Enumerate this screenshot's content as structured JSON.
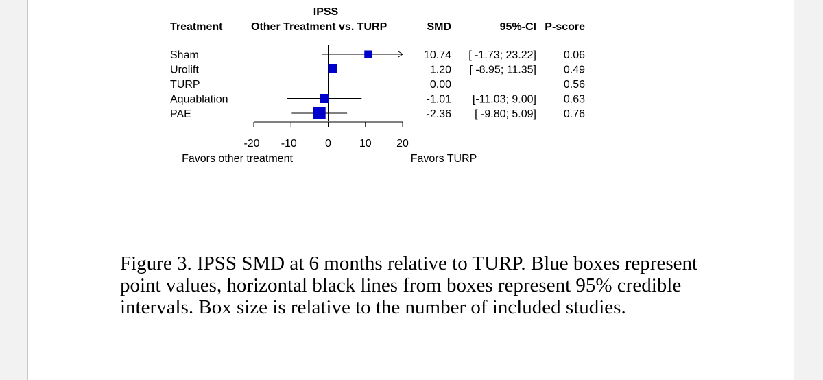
{
  "chart_data": {
    "type": "forest",
    "title": "IPSS",
    "headers": {
      "treatment": "Treatment",
      "comparison": "Other Treatment vs. TURP",
      "smd": "SMD",
      "ci": "95%-CI",
      "pscore": "P-score"
    },
    "rows": [
      {
        "name": "Sham",
        "smd": 10.74,
        "lo": -1.73,
        "hi": 23.22,
        "smd_text": "10.74",
        "ci_text": "[ -1.73; 23.22]",
        "pscore": "0.06",
        "box": "small"
      },
      {
        "name": "Urolift",
        "smd": 1.2,
        "lo": -8.95,
        "hi": 11.35,
        "smd_text": "1.20",
        "ci_text": "[ -8.95; 11.35]",
        "pscore": "0.49",
        "box": "medium"
      },
      {
        "name": "TURP",
        "smd": 0.0,
        "lo": null,
        "hi": null,
        "smd_text": "0.00",
        "ci_text": "",
        "pscore": "0.56",
        "box": "none"
      },
      {
        "name": "Aquablation",
        "smd": -1.01,
        "lo": -11.03,
        "hi": 9.0,
        "smd_text": "-1.01",
        "ci_text": "[-11.03; 9.00]",
        "pscore": "0.63",
        "box": "medium"
      },
      {
        "name": "PAE",
        "smd": -2.36,
        "lo": -9.8,
        "hi": 5.09,
        "smd_text": "-2.36",
        "ci_text": "[ -9.80; 5.09]",
        "pscore": "0.76",
        "box": "large"
      }
    ],
    "xlim": [
      -20,
      20
    ],
    "ticks": [
      "-20",
      "-10",
      "0",
      "10",
      "20"
    ],
    "favors_left": "Favors other treatment",
    "favors_right": "Favors TURP",
    "box_color": "#0000cc"
  },
  "caption": "Figure 3. IPSS SMD at 6 months relative to TURP. Blue boxes represent point values, horizontal black lines from boxes represent 95% credible intervals. Box size is relative to the number of included studies."
}
